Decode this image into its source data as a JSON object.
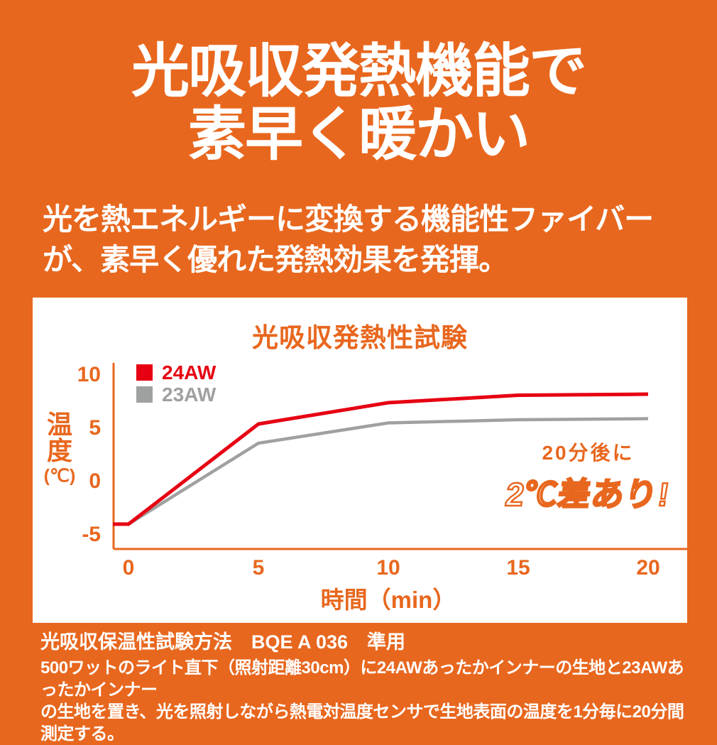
{
  "colors": {
    "background": "#E8671E",
    "accent": "#E8671E",
    "series_red": "#E60012",
    "series_gray": "#9FA0A0",
    "panel": "#FFFFFF"
  },
  "header": {
    "title_line1": "光吸収発熱機能で",
    "title_line2": "素早く暖かい",
    "subtitle_line1": "光を熱エネルギーに変換する機能性ファイバー",
    "subtitle_line2": "が、素早く優れた発熱効果を発揮。"
  },
  "chart_data": {
    "type": "line",
    "title": "光吸収発熱性試験",
    "xlabel": "時間（min）",
    "ylabel_chars": [
      "温",
      "度"
    ],
    "ylabel_unit": "(℃)",
    "x_ticks": [
      0,
      5,
      10,
      15,
      20
    ],
    "y_ticks": [
      10,
      5,
      0,
      -5
    ],
    "xlim": [
      -0.6,
      21.6
    ],
    "ylim": [
      -6.3,
      11.2
    ],
    "grid": false,
    "legend_position": "top-left",
    "series": [
      {
        "name": "24AW",
        "color": "#E60012",
        "x": [
          -0.6,
          0,
          5,
          10,
          15,
          20
        ],
        "y": [
          -4,
          -4,
          5.4,
          7.4,
          8.1,
          8.2
        ]
      },
      {
        "name": "23AW",
        "color": "#9FA0A0",
        "x": [
          -0.6,
          0,
          5,
          10,
          15,
          20
        ],
        "y": [
          -4,
          -4,
          3.6,
          5.5,
          5.8,
          5.9
        ]
      }
    ],
    "annotation": {
      "line1": "20分後に",
      "line2": "2℃差あり!"
    }
  },
  "footer": {
    "line1": "光吸収保温性試験方法　BQE A 036　準用",
    "line2": "500ワットのライト直下（照射距離30cm）に24AWあったかインナーの生地と23AWあったかインナー",
    "line3": "の生地を置き、光を照射しながら熱電対温度センサで生地表面の温度を1分毎に20分間測定する。"
  }
}
